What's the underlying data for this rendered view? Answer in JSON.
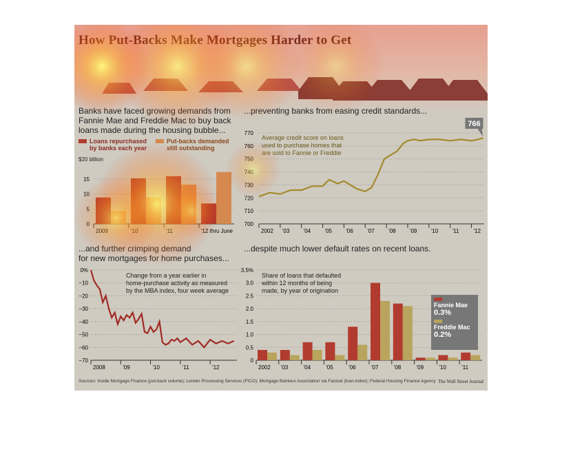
{
  "title": "How Put-Backs Make Mortgages Harder to Get",
  "sources": "Sources: Inside Mortgage Finance (put-back volume); Lender Processing Services (FICO); Mortgage Bankers Association via Factset (loan index); Federal Housing Finance Agency",
  "publisher": "The Wall Street Journal",
  "colors": {
    "red": "#b23b2f",
    "orange": "#d6894f",
    "olive": "#a48a2c",
    "gold": "#b9a45d",
    "dark_red": "#a02a23"
  },
  "chart_data": [
    {
      "type": "bar",
      "subhead": "Banks have faced growing demands from Fannie Mae and Freddie Mac to buy back loans made during the housing bubble...",
      "legend": [
        {
          "name": "Loans repurchased by banks each year",
          "line1": "Loans repurchased",
          "line2": "by banks each year"
        },
        {
          "name": "Put-backs demanded still outstanding",
          "line1": "Put-backs demanded",
          "line2": "still outstanding"
        }
      ],
      "unit_label": "$20 billion",
      "categories": [
        "2009",
        "'10",
        "'11",
        "'12 thru June"
      ],
      "ylim": [
        0,
        20
      ],
      "yticks": [
        0,
        5,
        10,
        15
      ],
      "series": [
        {
          "name": "Loans repurchased by banks each year",
          "values": [
            8.8,
            15.2,
            15.9,
            6.8
          ]
        },
        {
          "name": "Put-backs demanded still outstanding",
          "values": [
            4.3,
            8.8,
            13.1,
            17.3
          ]
        }
      ]
    },
    {
      "type": "line",
      "subhead": "...preventing banks from easing credit standards...",
      "note": [
        "Average credit score on loans",
        "used to purchase homes that",
        "are sold to Fannie or Freddie"
      ],
      "callout": "766",
      "ylim": [
        700,
        770
      ],
      "yticks": [
        700,
        710,
        720,
        730,
        740,
        750,
        760,
        770
      ],
      "xlim": [
        2002,
        2012.6
      ],
      "xtick_labels": [
        {
          "x": 2002,
          "label": "2002"
        },
        {
          "x": 2003,
          "label": "'03"
        },
        {
          "x": 2004,
          "label": "'04"
        },
        {
          "x": 2005,
          "label": "'05"
        },
        {
          "x": 2006,
          "label": "'06"
        },
        {
          "x": 2007,
          "label": "'07"
        },
        {
          "x": 2008,
          "label": "'08"
        },
        {
          "x": 2009,
          "label": "'09"
        },
        {
          "x": 2010,
          "label": "'10"
        },
        {
          "x": 2011,
          "label": "'11"
        },
        {
          "x": 2012,
          "label": "'12"
        }
      ],
      "series": [
        {
          "x": [
            2002.0,
            2002.5,
            2003.0,
            2003.5,
            2004.0,
            2004.5,
            2005.0,
            2005.3,
            2005.7,
            2006.0,
            2006.3,
            2006.6,
            2007.0,
            2007.3,
            2007.6,
            2007.9,
            2008.2,
            2008.5,
            2008.8,
            2009.0,
            2009.3,
            2009.6,
            2010.0,
            2010.5,
            2011.0,
            2011.5,
            2012.0,
            2012.3,
            2012.55
          ],
          "y": [
            721,
            724,
            723,
            726,
            726,
            729,
            729,
            734,
            731,
            733,
            730,
            727,
            725,
            728,
            738,
            750,
            753,
            756,
            762,
            764,
            765,
            764,
            765,
            765,
            764,
            765,
            764,
            765,
            766
          ]
        }
      ]
    },
    {
      "type": "line",
      "subhead": "...and further crimping demand for new mortgages for home purchases...",
      "subhead_line1": "...and further crimping demand",
      "subhead_line2": "for new mortgages for home purchases...",
      "note": [
        "Change from a year earlier in",
        "home-purchase activity as measured",
        "by the MBA index, four week average"
      ],
      "ylim": [
        -70,
        0
      ],
      "ytick_labels": [
        {
          "y": 0,
          "label": "0%"
        },
        {
          "y": -10,
          "label": "−10"
        },
        {
          "y": -20,
          "label": "−20"
        },
        {
          "y": -30,
          "label": "−30"
        },
        {
          "y": -40,
          "label": "−40"
        },
        {
          "y": -50,
          "label": "−50"
        },
        {
          "y": -60,
          "label": "−60"
        },
        {
          "y": -70,
          "label": "−70"
        }
      ],
      "xlim": [
        2008,
        2012.9
      ],
      "xtick_labels": [
        {
          "x": 2008,
          "label": "2008"
        },
        {
          "x": 2009,
          "label": "'09"
        },
        {
          "x": 2010,
          "label": "'10"
        },
        {
          "x": 2011,
          "label": "'11"
        },
        {
          "x": 2012,
          "label": "'12"
        }
      ],
      "series": [
        {
          "x": [
            2008.0,
            2008.1,
            2008.2,
            2008.3,
            2008.4,
            2008.5,
            2008.6,
            2008.7,
            2008.8,
            2008.9,
            2009.0,
            2009.1,
            2009.2,
            2009.3,
            2009.4,
            2009.5,
            2009.6,
            2009.7,
            2009.8,
            2009.9,
            2010.0,
            2010.1,
            2010.2,
            2010.3,
            2010.4,
            2010.5,
            2010.6,
            2010.7,
            2010.8,
            2010.9,
            2011.0,
            2011.2,
            2011.4,
            2011.6,
            2011.8,
            2012.0,
            2012.2,
            2012.4,
            2012.6,
            2012.8
          ],
          "y": [
            0,
            -8,
            -12,
            -15,
            -25,
            -20,
            -30,
            -37,
            -33,
            -42,
            -36,
            -39,
            -35,
            -37,
            -33,
            -41,
            -38,
            -34,
            -48,
            -49,
            -44,
            -48,
            -46,
            -40,
            -56,
            -58,
            -57,
            -54,
            -55,
            -53,
            -56,
            -53,
            -58,
            -55,
            -60,
            -54,
            -57,
            -55,
            -57,
            -55
          ]
        }
      ]
    },
    {
      "type": "bar",
      "subhead": "...despite much lower default rates on recent loans.",
      "note": [
        "Share of loans that defaulted",
        "within 12 months of being",
        "made, by year of origination"
      ],
      "legend_box": [
        {
          "name": "Fannie Mae",
          "value": "0.3%"
        },
        {
          "name": "Freddie Mac",
          "value": "0.2%"
        }
      ],
      "categories": [
        "2002",
        "'03",
        "'04",
        "'05",
        "'06",
        "'07",
        "'08",
        "'09",
        "'10",
        "'11"
      ],
      "ylim": [
        0,
        3.5
      ],
      "ytick_labels": [
        {
          "y": 0,
          "label": "0"
        },
        {
          "y": 0.5,
          "label": "0.5"
        },
        {
          "y": 1.0,
          "label": "1.0"
        },
        {
          "y": 1.5,
          "label": "1.5"
        },
        {
          "y": 2.0,
          "label": "2.0"
        },
        {
          "y": 2.5,
          "label": "2.5"
        },
        {
          "y": 3.0,
          "label": "3.0"
        },
        {
          "y": 3.5,
          "label": "3.5%"
        }
      ],
      "series": [
        {
          "name": "Fannie Mae",
          "values": [
            0.4,
            0.4,
            0.7,
            0.7,
            1.3,
            3.0,
            2.2,
            0.1,
            0.2,
            0.3
          ]
        },
        {
          "name": "Freddie Mac",
          "values": [
            0.3,
            0.2,
            0.4,
            0.2,
            0.6,
            2.3,
            2.1,
            0.1,
            0.1,
            0.2
          ]
        }
      ]
    }
  ]
}
